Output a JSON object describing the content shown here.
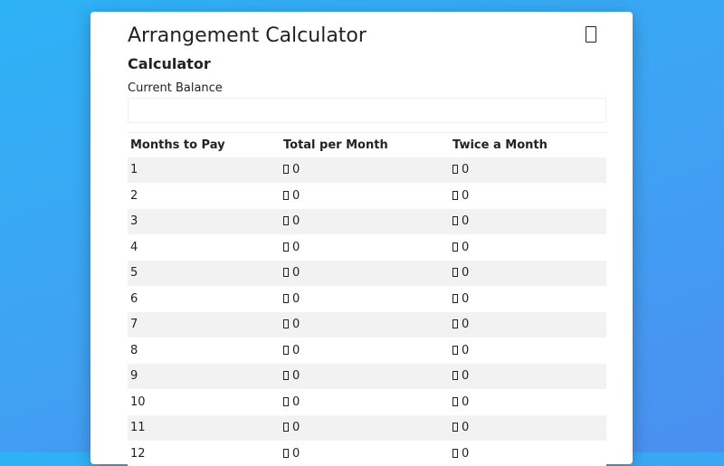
{
  "card": {
    "title": "Arrangement Calculator",
    "subtitle": "Calculator",
    "balance_label": "Current Balance",
    "balance_value": "",
    "balance_placeholder": ""
  },
  "table": {
    "headers": [
      "Months to Pay",
      "Total per Month",
      "Twice a Month"
    ],
    "rows": [
      {
        "months": "1",
        "total": "0",
        "twice": "0"
      },
      {
        "months": "2",
        "total": "0",
        "twice": "0"
      },
      {
        "months": "3",
        "total": "0",
        "twice": "0"
      },
      {
        "months": "4",
        "total": "0",
        "twice": "0"
      },
      {
        "months": "5",
        "total": "0",
        "twice": "0"
      },
      {
        "months": "6",
        "total": "0",
        "twice": "0"
      },
      {
        "months": "7",
        "total": "0",
        "twice": "0"
      },
      {
        "months": "8",
        "total": "0",
        "twice": "0"
      },
      {
        "months": "9",
        "total": "0",
        "twice": "0"
      },
      {
        "months": "10",
        "total": "0",
        "twice": "0"
      },
      {
        "months": "11",
        "total": "0",
        "twice": "0"
      },
      {
        "months": "12",
        "total": "0",
        "twice": "0"
      }
    ]
  },
  "icons": {
    "close": "close-icon",
    "currency": "currency-icon"
  },
  "colors": {
    "background_start": "#2eb2f6",
    "background_end": "#4a8ff0",
    "card": "#ffffff",
    "row_stripe": "#f2f2f2",
    "text": "#222222"
  }
}
